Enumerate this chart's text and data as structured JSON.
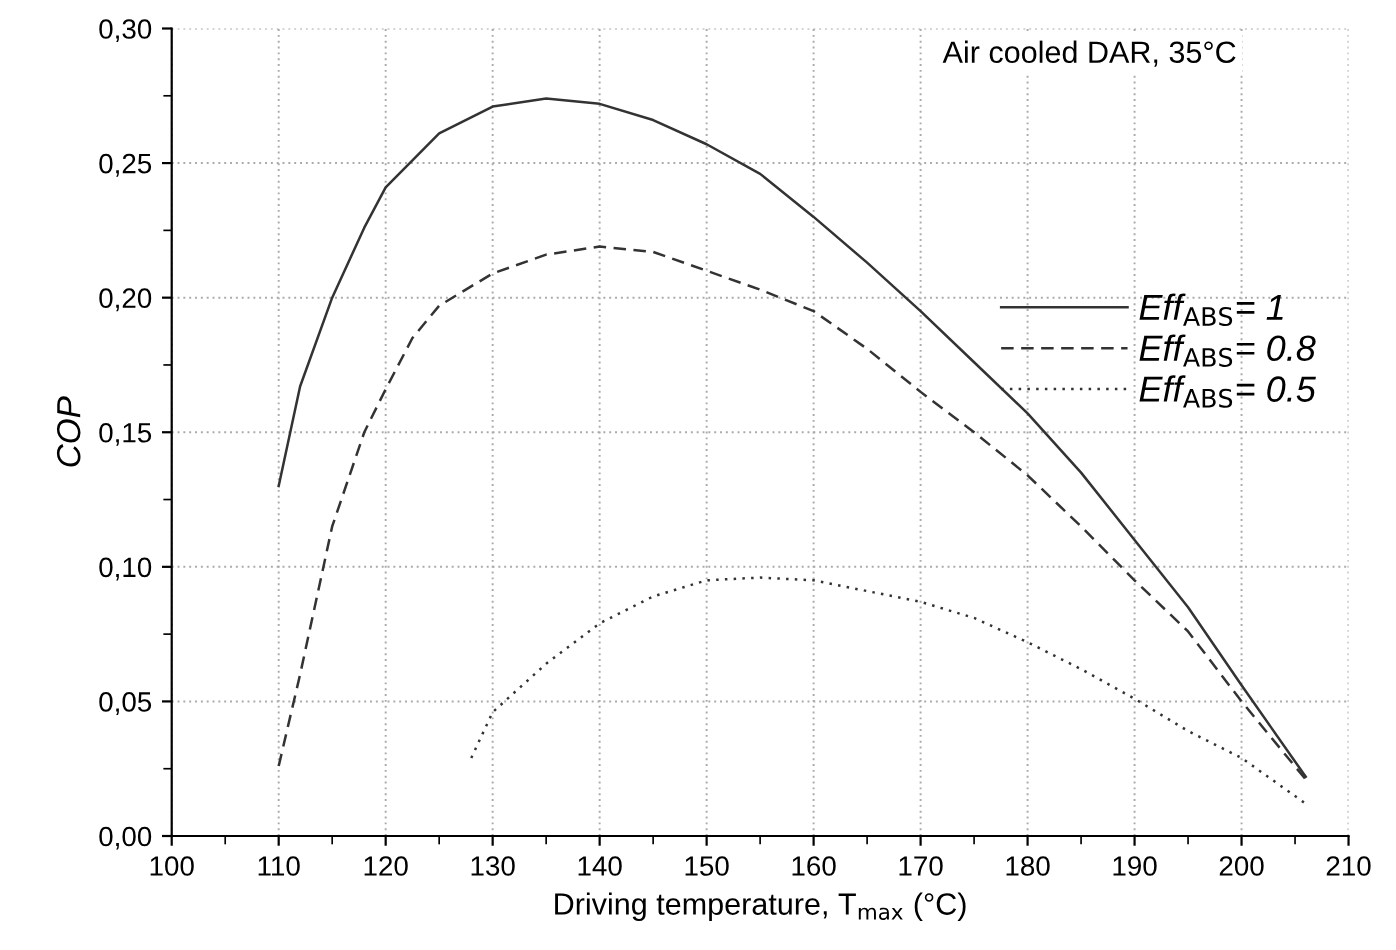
{
  "chart_data": {
    "type": "line",
    "xlabel": "Driving temperature, T$_{max}$ (°C)",
    "ylabel": "COP",
    "annotations": [
      "Air cooled DAR, 35°C"
    ],
    "series": [
      {
        "name": "Eff$_{ABS}$= 1",
        "color": "#333333",
        "line_style": "solid",
        "x": [
          110,
          112,
          115,
          118,
          120,
          125,
          130,
          135,
          140,
          145,
          150,
          155,
          160,
          165,
          170,
          175,
          180,
          185,
          190,
          195,
          200,
          206
        ],
        "values": [
          0.13,
          0.167,
          0.2,
          0.226,
          0.241,
          0.261,
          0.271,
          0.274,
          0.272,
          0.266,
          0.257,
          0.246,
          0.23,
          0.213,
          0.195,
          0.176,
          0.157,
          0.135,
          0.11,
          0.085,
          0.056,
          0.022
        ]
      },
      {
        "name": "Eff$_{ABS}$= 0.8",
        "color": "#333333",
        "line_style": "dashed",
        "x": [
          110,
          112,
          115,
          118,
          120,
          122.5,
          125,
          130,
          135,
          140,
          145,
          150,
          155,
          160,
          165,
          170,
          175,
          180,
          185,
          190,
          195,
          200,
          206
        ],
        "values": [
          0.026,
          0.06,
          0.115,
          0.15,
          0.166,
          0.185,
          0.197,
          0.209,
          0.216,
          0.219,
          0.217,
          0.21,
          0.203,
          0.195,
          0.181,
          0.165,
          0.15,
          0.134,
          0.115,
          0.095,
          0.076,
          0.05,
          0.021
        ]
      },
      {
        "name": "Eff$_{ABS}$= 0.5",
        "color": "#333333",
        "line_style": "dotted",
        "x": [
          128,
          130,
          135,
          140,
          145,
          150,
          155,
          160,
          165,
          170,
          175,
          180,
          185,
          190,
          195,
          200,
          206
        ],
        "values": [
          0.029,
          0.046,
          0.064,
          0.079,
          0.089,
          0.095,
          0.096,
          0.095,
          0.091,
          0.087,
          0.081,
          0.072,
          0.062,
          0.051,
          0.039,
          0.029,
          0.012
        ]
      }
    ],
    "xlim": [
      100,
      210
    ],
    "xticks": [
      100,
      110,
      120,
      130,
      140,
      150,
      160,
      170,
      180,
      190,
      200,
      210
    ],
    "ylim": [
      0,
      0.3
    ],
    "yticks": [
      {
        "value": 0,
        "label": "0,00"
      },
      {
        "value": 0.05,
        "label": "0,05"
      },
      {
        "value": 0.1,
        "label": "0,10"
      },
      {
        "value": 0.15,
        "label": "0,15"
      },
      {
        "value": 0.2,
        "label": "0,20"
      },
      {
        "value": 0.25,
        "label": "0,25"
      },
      {
        "value": 0.3,
        "label": "0,30"
      }
    ],
    "grid": true,
    "legend": "right",
    "marker": "none"
  }
}
